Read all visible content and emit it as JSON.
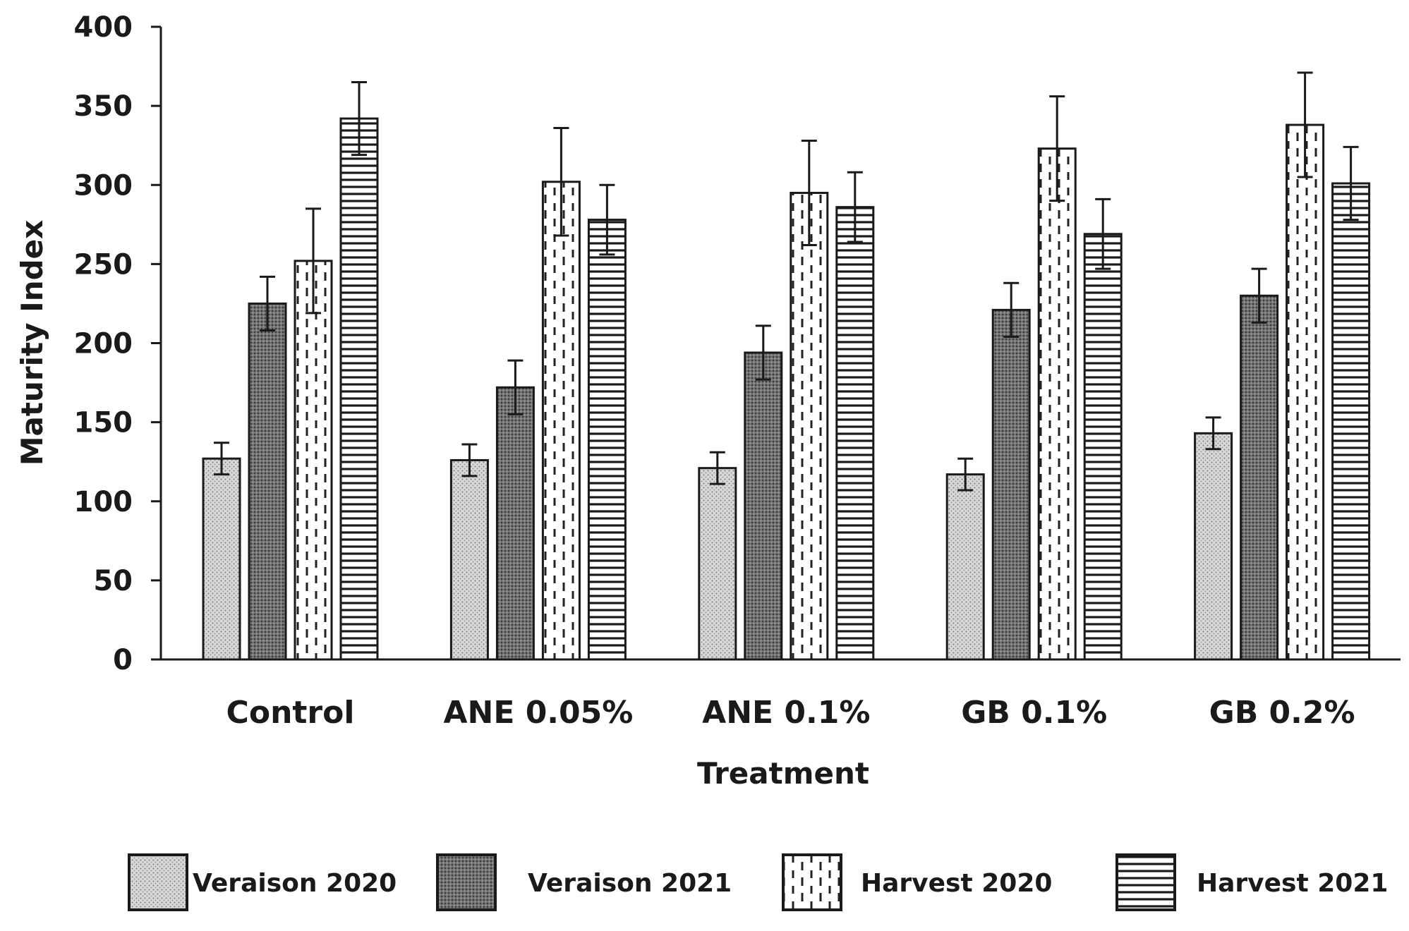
{
  "chart_data": {
    "type": "bar",
    "title": "",
    "xlabel": "Treatment",
    "ylabel": "Maturity Index",
    "ylim": [
      0,
      400
    ],
    "yticks": [
      0,
      50,
      100,
      150,
      200,
      250,
      300,
      350,
      400
    ],
    "grid": false,
    "legend_position": "bottom",
    "categories": [
      "Control",
      "ANE 0.05%",
      "ANE 0.1%",
      "GB 0.1%",
      "GB 0.2%"
    ],
    "series": [
      {
        "name": "Veraison 2020",
        "pattern": "fine-dots",
        "values": [
          127,
          126,
          121,
          117,
          143
        ],
        "errors": [
          10,
          10,
          10,
          10,
          10
        ]
      },
      {
        "name": "Veraison 2021",
        "pattern": "dense-grid",
        "values": [
          225,
          172,
          194,
          221,
          230
        ],
        "errors": [
          17,
          17,
          17,
          17,
          17
        ]
      },
      {
        "name": "Harvest 2020",
        "pattern": "dashed-vertical",
        "values": [
          252,
          302,
          295,
          323,
          338
        ],
        "errors": [
          33,
          34,
          33,
          33,
          33
        ]
      },
      {
        "name": "Harvest 2021",
        "pattern": "horizontal-lines",
        "values": [
          342,
          278,
          286,
          269,
          301
        ],
        "errors": [
          23,
          22,
          22,
          22,
          23
        ]
      }
    ]
  }
}
